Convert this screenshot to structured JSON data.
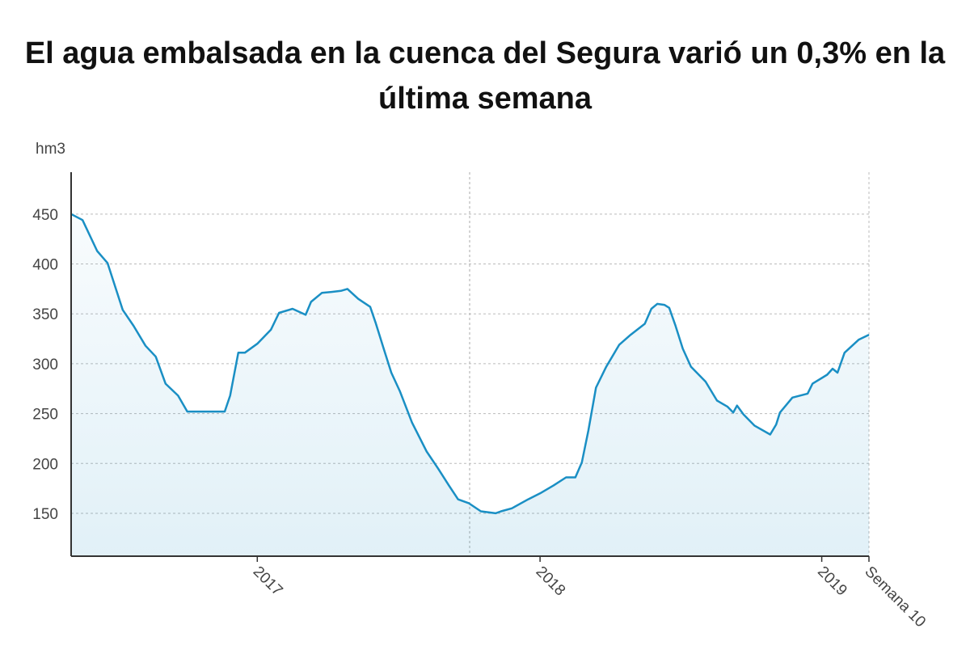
{
  "chart_data": {
    "type": "area",
    "title": "El agua embalsada en la cuenca del Segura varió un 0,3% en la última semana",
    "y_label": "hm3",
    "color": "#1a8fc4",
    "x": [
      0,
      2.1,
      4.8,
      6.7,
      9.5,
      11.5,
      13.7,
      15.6,
      17.4,
      19.7,
      21.4,
      28.3,
      29.3,
      30.8,
      32,
      34.3,
      36.8,
      38.3,
      40.8,
      43.2,
      44.2,
      46.2,
      48,
      49.7,
      50.9,
      52.9,
      55.1,
      56.1,
      57.6,
      59,
      60.6,
      62.8,
      65.5,
      67.6,
      69.6,
      71.3,
      73.3,
      75.5,
      78.2,
      79.2,
      81.2,
      84.2,
      86.4,
      88.9,
      91.2,
      92.9,
      94.1,
      95.3,
      96.7,
      98.6,
      101,
      103.1,
      105.7,
      106.9,
      108,
      109.3,
      110.2,
      111.3,
      112.7,
      114.2,
      116.9,
      119,
      120.9,
      122,
      122.7,
      123.9,
      125.9,
      128.8,
      129.9,
      130.6,
      132.9,
      135.7,
      136.6,
      139.3,
      140.3,
      141.2,
      142.5,
      145.1,
      147
    ],
    "values": [
      450,
      444,
      413,
      401,
      354,
      338,
      318,
      307,
      280,
      268,
      252,
      252,
      268,
      311,
      311,
      320,
      334,
      351,
      355,
      349,
      362,
      371,
      372,
      373,
      375,
      365,
      357,
      341,
      315,
      291,
      272,
      241,
      212,
      195,
      178,
      164,
      160,
      152,
      150,
      152,
      155,
      164,
      170,
      178,
      186,
      186,
      201,
      233,
      276,
      297,
      319,
      329,
      340,
      355,
      360,
      359,
      356,
      339,
      315,
      297,
      282,
      263,
      257,
      251,
      258,
      249,
      238,
      229,
      239,
      251,
      266,
      270,
      280,
      289,
      295,
      291,
      311,
      324,
      329
    ],
    "xlim": [
      0,
      147
    ],
    "xticks": [
      {
        "value": 34.3,
        "label": "2017"
      },
      {
        "value": 86.4,
        "label": "2018"
      },
      {
        "value": 138.3,
        "label": "2019"
      },
      {
        "value": 147,
        "label": "Semana 10"
      }
    ],
    "ylim": [
      107,
      492
    ],
    "yticks": [
      150,
      200,
      250,
      300,
      350,
      400,
      450
    ],
    "grid": true
  }
}
